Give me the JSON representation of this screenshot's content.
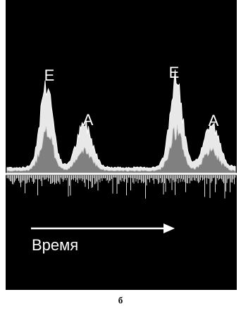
{
  "labels": {
    "peaks": [
      "E",
      "A",
      "E",
      "A"
    ],
    "time_axis": "Время"
  },
  "caption": "б"
}
